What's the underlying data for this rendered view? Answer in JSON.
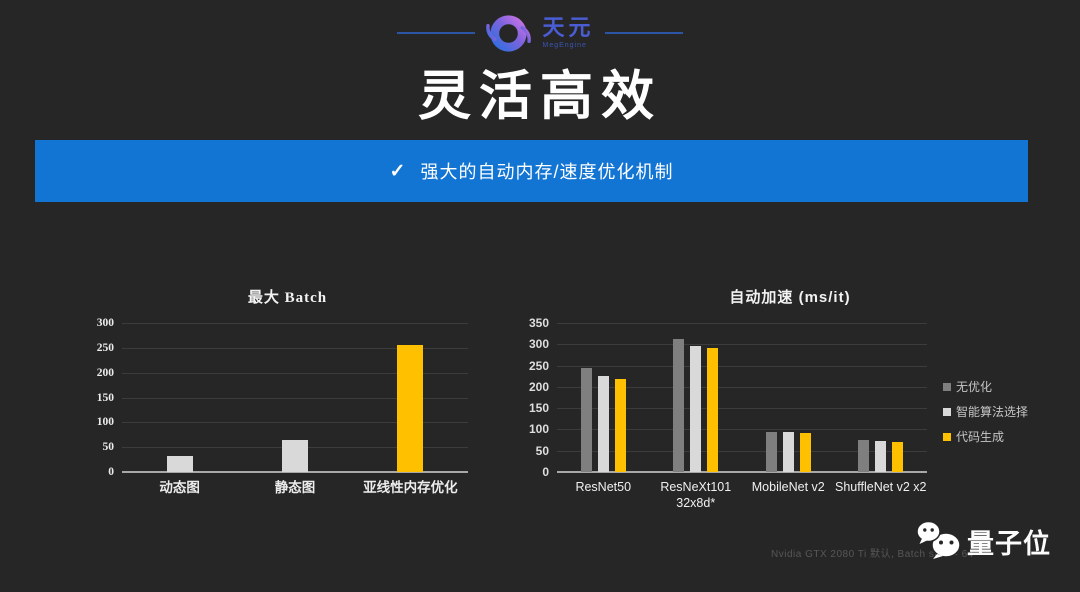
{
  "slide": {
    "background": "#262626",
    "header": {
      "brand": "天元",
      "brand_sub": "MegEngine",
      "accent": "#4a5dd4"
    },
    "title": "灵活高效",
    "banner": {
      "check_icon": "✓",
      "text": "强大的自动内存/速度优化机制",
      "color": "#1375d3"
    },
    "footnote": "Nvidia GTX 2080 Ti   默认, Batch size = 64",
    "watermark": {
      "label": "量子位"
    }
  },
  "chart_data": [
    {
      "type": "bar",
      "title": "最大 Batch",
      "categories": [
        "动态图",
        "静态图",
        "亚线性内存优化"
      ],
      "values": [
        32,
        64,
        256
      ],
      "bar_colors": [
        "#d9d9d9",
        "#d9d9d9",
        "#ffc000"
      ],
      "ylim": [
        0,
        300
      ],
      "ytick_step": 50,
      "grid": true,
      "legend_position": "none"
    },
    {
      "type": "bar",
      "title": "自动加速 (ms/it)",
      "categories": [
        "ResNet50",
        "ResNeXt101\n32x8d*",
        "MobileNet v2",
        "ShuffleNet v2 x2"
      ],
      "series": [
        {
          "name": "无优化",
          "color": "#7f7f7f",
          "values": [
            245,
            312,
            93,
            75
          ]
        },
        {
          "name": "智能算法选择",
          "color": "#d9d9d9",
          "values": [
            226,
            296,
            93,
            73
          ]
        },
        {
          "name": "代码生成",
          "color": "#ffc000",
          "values": [
            219,
            292,
            91,
            70
          ]
        }
      ],
      "ylim": [
        0,
        350
      ],
      "ytick_step": 50,
      "grid": true,
      "legend_position": "right"
    }
  ]
}
